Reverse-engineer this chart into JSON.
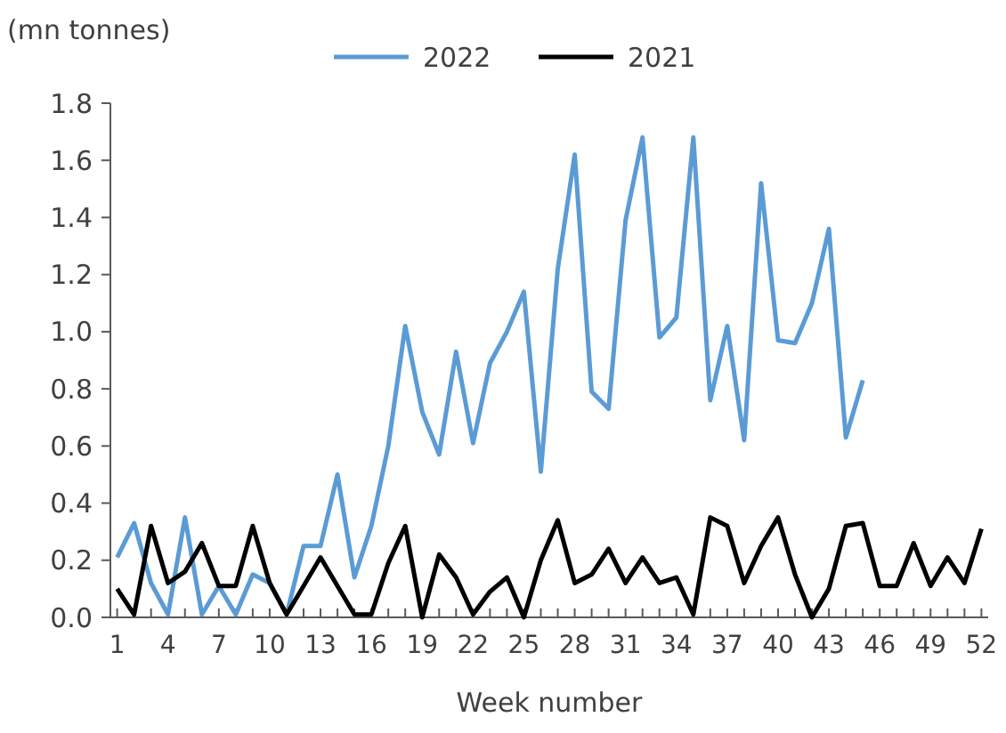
{
  "chart_data": {
    "type": "line",
    "ylabel": "(mn tonnes)",
    "xlabel": "Week number",
    "x": [
      1,
      2,
      3,
      4,
      5,
      6,
      7,
      8,
      9,
      10,
      11,
      12,
      13,
      14,
      15,
      16,
      17,
      18,
      19,
      20,
      21,
      22,
      23,
      24,
      25,
      26,
      27,
      28,
      29,
      30,
      31,
      32,
      33,
      34,
      35,
      36,
      37,
      38,
      39,
      40,
      41,
      42,
      43,
      44,
      45,
      46,
      47,
      48,
      49,
      50,
      51,
      52
    ],
    "series": [
      {
        "name": "2022",
        "color": "#5b9bd5",
        "values": [
          0.21,
          0.33,
          0.12,
          0.01,
          0.35,
          0.01,
          0.11,
          0.01,
          0.15,
          0.12,
          0.01,
          0.25,
          0.25,
          0.5,
          0.14,
          0.32,
          0.6,
          1.02,
          0.72,
          0.57,
          0.93,
          0.61,
          0.89,
          1.0,
          1.14,
          0.51,
          1.22,
          1.62,
          0.79,
          0.73,
          1.39,
          1.68,
          0.98,
          1.05,
          1.68,
          0.76,
          1.02,
          0.62,
          1.52,
          0.97,
          0.96,
          1.1,
          1.36,
          0.63,
          0.83,
          null,
          null,
          null,
          null,
          null,
          null,
          null
        ]
      },
      {
        "name": "2021",
        "color": "#000000",
        "values": [
          0.1,
          0.01,
          0.32,
          0.12,
          0.16,
          0.26,
          0.11,
          0.11,
          0.32,
          0.12,
          0.01,
          0.11,
          0.21,
          0.11,
          0.01,
          0.01,
          0.19,
          0.32,
          0.0,
          0.22,
          0.14,
          0.01,
          0.09,
          0.14,
          0.0,
          0.2,
          0.34,
          0.12,
          0.15,
          0.24,
          0.12,
          0.21,
          0.12,
          0.14,
          0.01,
          0.35,
          0.32,
          0.12,
          0.25,
          0.35,
          0.15,
          0.0,
          0.1,
          0.32,
          0.33,
          0.11,
          0.11,
          0.26,
          0.11,
          0.21,
          0.12,
          0.31
        ]
      }
    ],
    "xlim": [
      0.6,
      52.4
    ],
    "xticks": [
      1,
      {
        "value": 2,
        "label": null
      },
      {
        "value": 3,
        "label": null
      },
      4,
      {
        "value": 5,
        "label": null
      },
      {
        "value": 6,
        "label": null
      },
      7,
      {
        "value": 8,
        "label": null
      },
      {
        "value": 9,
        "label": null
      },
      10,
      {
        "value": 11,
        "label": null
      },
      {
        "value": 12,
        "label": null
      },
      13,
      {
        "value": 14,
        "label": null
      },
      {
        "value": 15,
        "label": null
      },
      16,
      {
        "value": 17,
        "label": null
      },
      {
        "value": 18,
        "label": null
      },
      19,
      {
        "value": 20,
        "label": null
      },
      {
        "value": 21,
        "label": null
      },
      22,
      {
        "value": 23,
        "label": null
      },
      {
        "value": 24,
        "label": null
      },
      25,
      {
        "value": 26,
        "label": null
      },
      {
        "value": 27,
        "label": null
      },
      28,
      {
        "value": 29,
        "label": null
      },
      {
        "value": 30,
        "label": null
      },
      31,
      {
        "value": 32,
        "label": null
      },
      {
        "value": 33,
        "label": null
      },
      34,
      {
        "value": 35,
        "label": null
      },
      {
        "value": 36,
        "label": null
      },
      37,
      {
        "value": 38,
        "label": null
      },
      {
        "value": 39,
        "label": null
      },
      40,
      {
        "value": 41,
        "label": null
      },
      {
        "value": 42,
        "label": null
      },
      43,
      {
        "value": 44,
        "label": null
      },
      {
        "value": 45,
        "label": null
      },
      46,
      {
        "value": 47,
        "label": null
      },
      {
        "value": 48,
        "label": null
      },
      49,
      {
        "value": 50,
        "label": null
      },
      {
        "value": 51,
        "label": null
      },
      52
    ],
    "ylim": [
      0,
      1.8
    ],
    "yticks": [
      {
        "value": 0,
        "label": "0.0"
      },
      {
        "value": 0.2,
        "label": "0.2"
      },
      {
        "value": 0.4,
        "label": "0.4"
      },
      {
        "value": 0.6,
        "label": "0.6"
      },
      {
        "value": 0.8,
        "label": "0.8"
      },
      {
        "value": 1.0,
        "label": "1.0"
      },
      {
        "value": 1.2,
        "label": "1.2"
      },
      {
        "value": 1.4,
        "label": "1.4"
      },
      {
        "value": 1.6,
        "label": "1.6"
      },
      {
        "value": 1.8,
        "label": "1.8"
      }
    ],
    "grid": false,
    "legend": "top",
    "marker": "none",
    "line_style": "solid"
  }
}
